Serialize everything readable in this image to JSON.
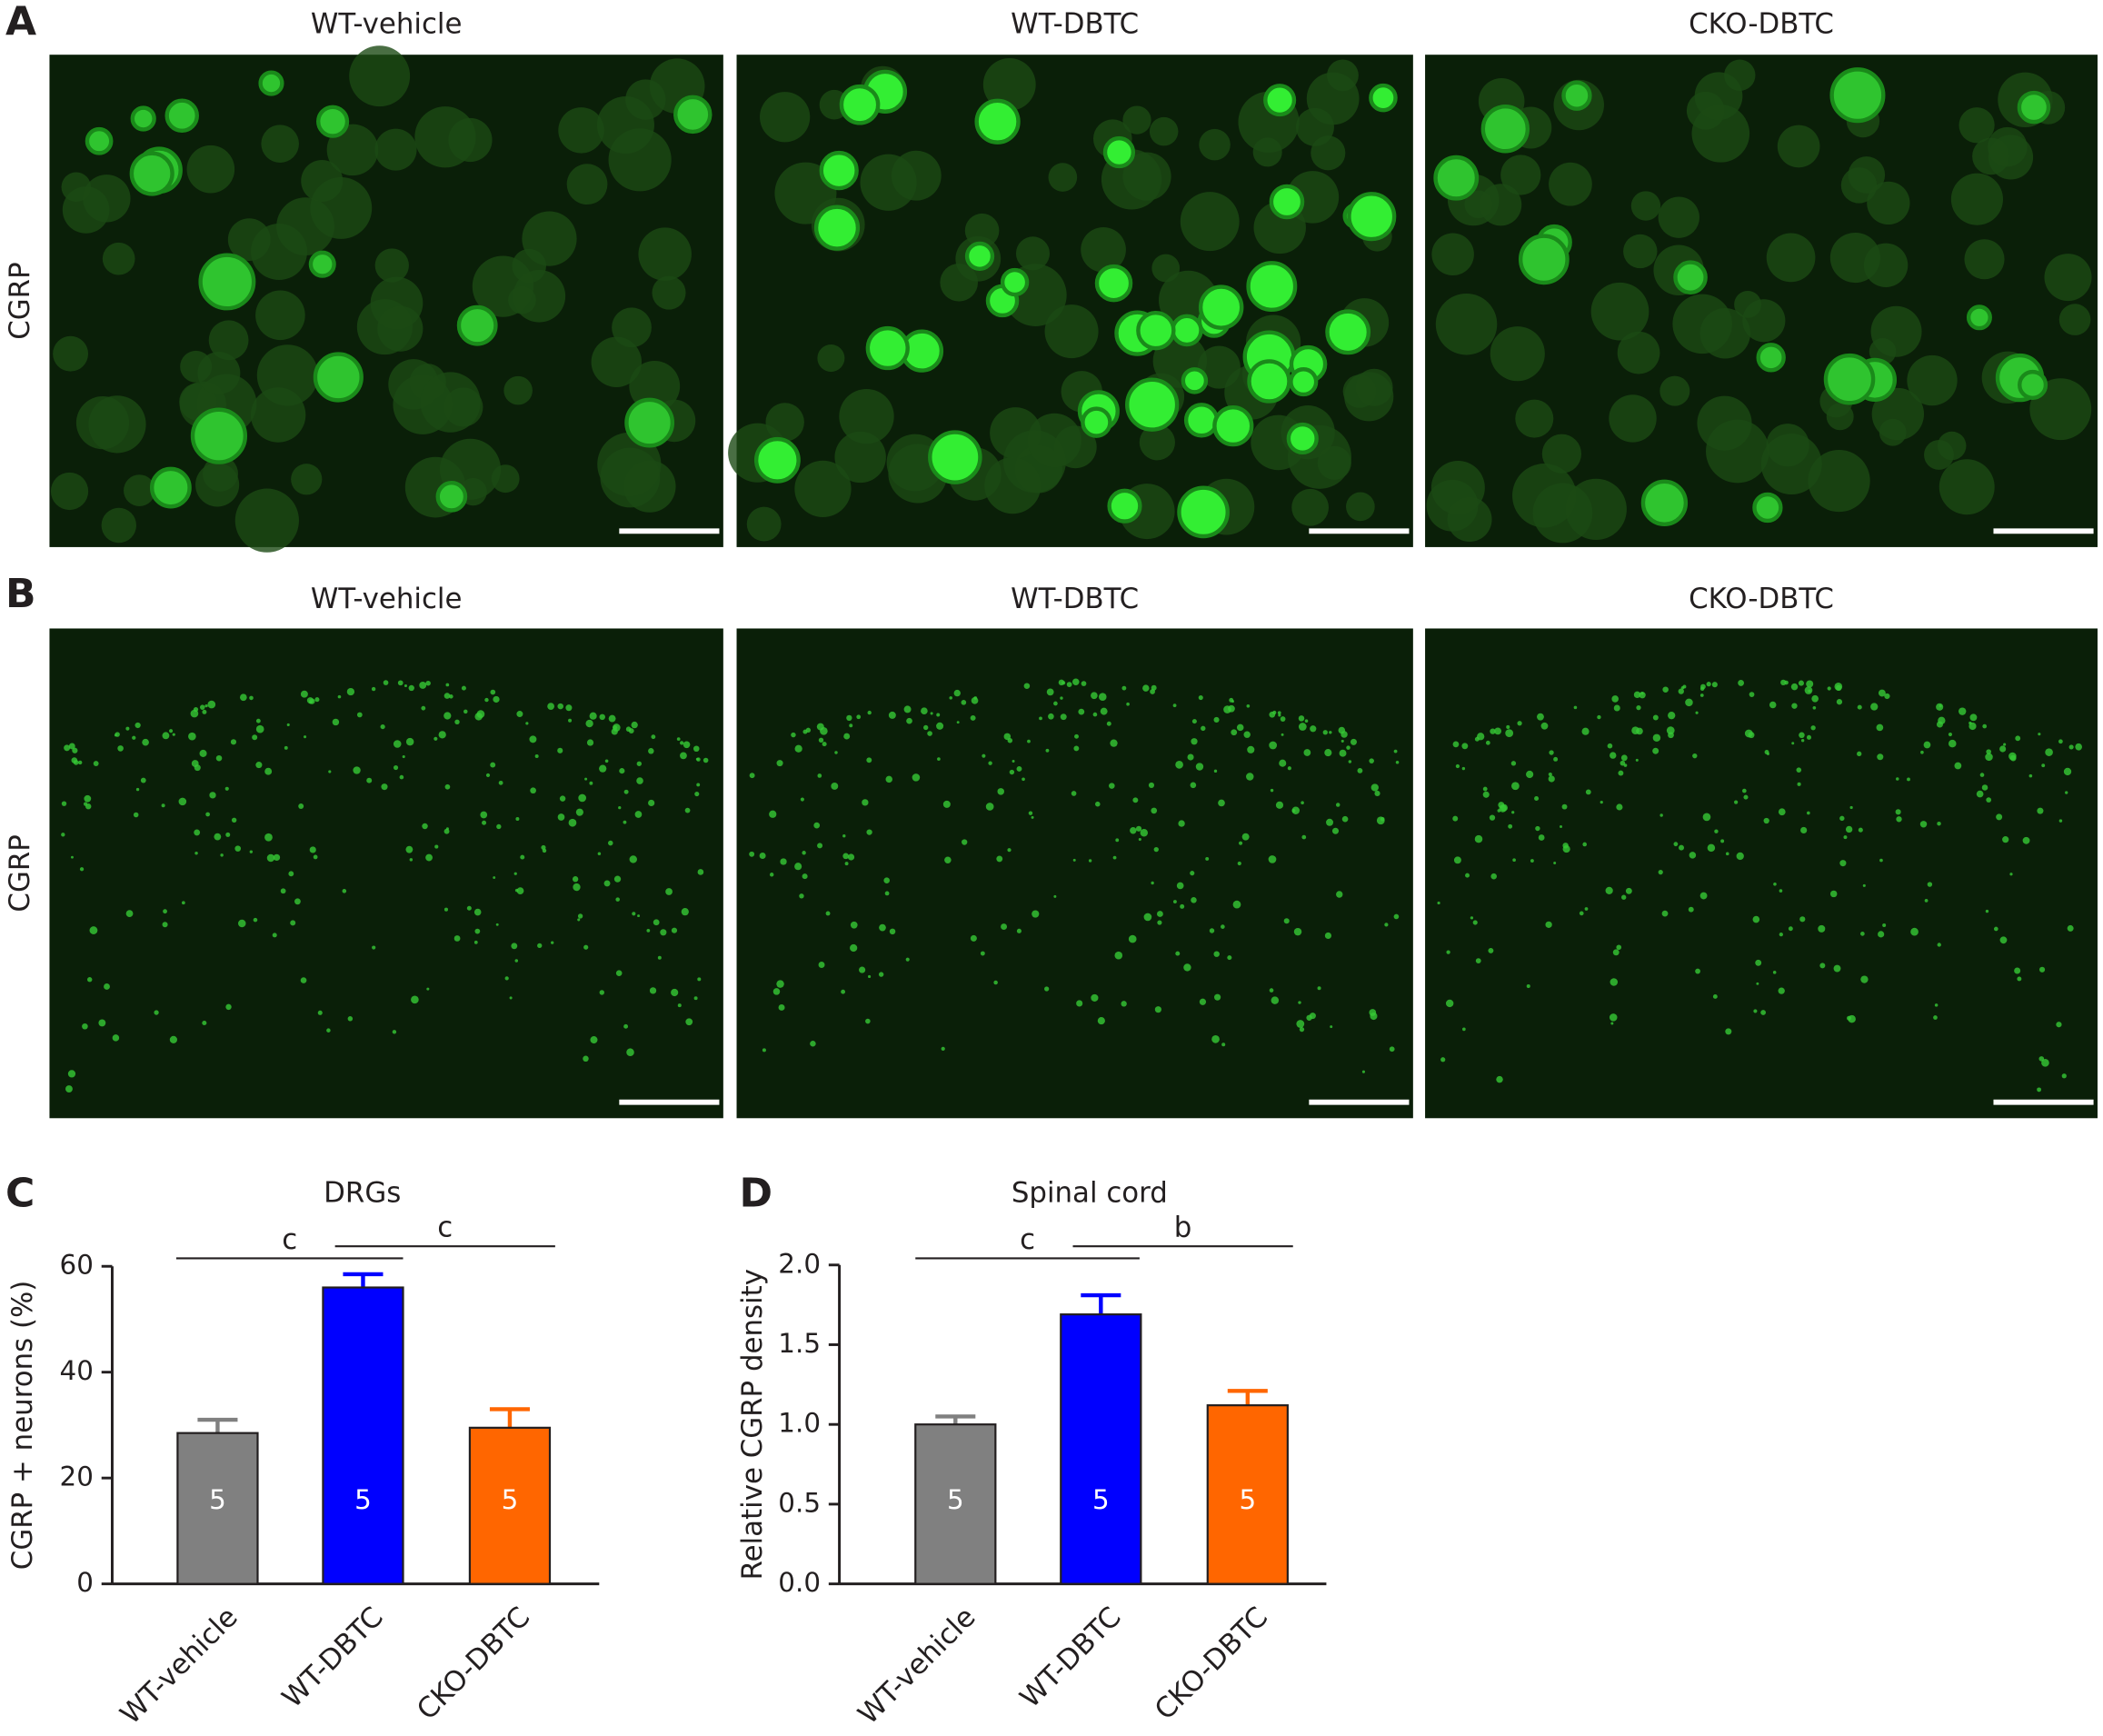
{
  "figure": {
    "panels": [
      {
        "letter": "A",
        "row_label": "CGRP",
        "columns": [
          "WT-vehicle",
          "WT-DBTC",
          "CKO-DBTC"
        ]
      },
      {
        "letter": "B",
        "row_label": "CGRP",
        "columns": [
          "WT-vehicle",
          "WT-DBTC",
          "CKO-DBTC"
        ]
      }
    ]
  },
  "chart_data": [
    {
      "type": "bar",
      "panel_label": "C",
      "title": "DRGs",
      "y_label": "CGRP + neurons (%)",
      "categories": [
        "WT-vehicle",
        "WT-DBTC",
        "CKO-DBTC"
      ],
      "values": [
        28.5,
        56,
        29.5
      ],
      "errors": [
        2.5,
        2.5,
        3.5
      ],
      "n": [
        5,
        5,
        5
      ],
      "colors": [
        "#808080",
        "#0000ff",
        "#ff6600"
      ],
      "ylim": [
        0,
        60
      ],
      "yticks": [
        0,
        20,
        40,
        60
      ],
      "annotations": [
        "c",
        "c"
      ]
    },
    {
      "type": "bar",
      "panel_label": "D",
      "title": "Spinal cord",
      "y_label": "Relative CGRP density",
      "categories": [
        "WT-vehicle",
        "WT-DBTC",
        "CKO-DBTC"
      ],
      "values": [
        1.0,
        1.69,
        1.12
      ],
      "errors": [
        0.05,
        0.12,
        0.09
      ],
      "n": [
        5,
        5,
        5
      ],
      "colors": [
        "#808080",
        "#0000ff",
        "#ff6600"
      ],
      "ylim": [
        0,
        2
      ],
      "yticks": [
        {
          "value": 0,
          "label": "0.0"
        },
        {
          "value": 0.5,
          "label": "0.5"
        },
        {
          "value": 1,
          "label": "1.0"
        },
        {
          "value": 1.5,
          "label": "1.5"
        },
        {
          "value": 2,
          "label": "2.0"
        }
      ],
      "annotations": [
        "c",
        "b"
      ]
    }
  ]
}
